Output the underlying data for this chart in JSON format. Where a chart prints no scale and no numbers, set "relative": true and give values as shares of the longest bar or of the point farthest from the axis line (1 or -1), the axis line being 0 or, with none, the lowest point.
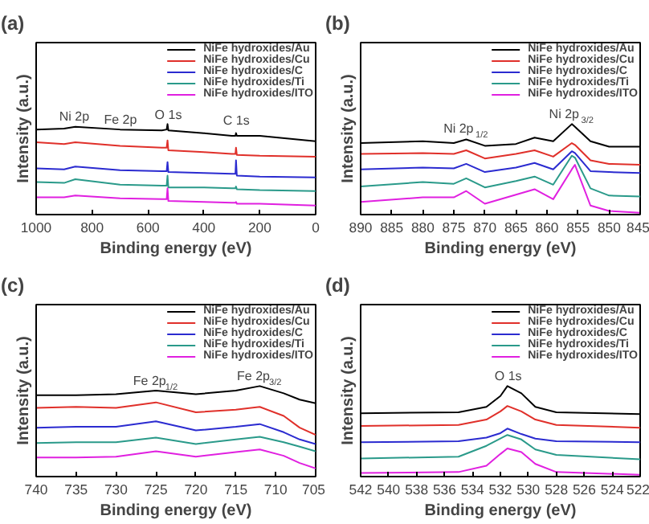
{
  "chart_data": [
    {
      "type": "line",
      "title": "(a)",
      "xlabel": "Binding energy (eV)",
      "ylabel": "Intensity (a.u.)",
      "relative": true,
      "xlim": [
        1000,
        0
      ],
      "xticks": [
        1000,
        800,
        600,
        400,
        200,
        0
      ],
      "legend": "top right",
      "grid": false,
      "x": [
        1000,
        900,
        860,
        700,
        550,
        533,
        530,
        527,
        400,
        300,
        287,
        285,
        282,
        200,
        0
      ],
      "series": [
        {
          "name": "NiFe hydroxides/Au",
          "color": "#000000",
          "values": [
            0.94,
            0.95,
            0.97,
            0.94,
            0.93,
            0.94,
            1.0,
            0.93,
            0.9,
            0.87,
            0.87,
            0.9,
            0.87,
            0.87,
            0.81
          ]
        },
        {
          "name": "NiFe hydroxides/Cu",
          "color": "#e0302a",
          "values": [
            0.8,
            0.78,
            0.8,
            0.76,
            0.74,
            0.74,
            0.82,
            0.71,
            0.69,
            0.67,
            0.67,
            0.74,
            0.66,
            0.65,
            0.64
          ]
        },
        {
          "name": "NiFe hydroxides/C",
          "color": "#2b2bd0",
          "values": [
            0.51,
            0.5,
            0.53,
            0.49,
            0.48,
            0.48,
            0.58,
            0.47,
            0.46,
            0.45,
            0.45,
            0.6,
            0.43,
            0.42,
            0.41
          ]
        },
        {
          "name": "NiFe hydroxides/Ti",
          "color": "#2a9a8a",
          "values": [
            0.36,
            0.35,
            0.39,
            0.33,
            0.32,
            0.32,
            0.43,
            0.3,
            0.3,
            0.29,
            0.29,
            0.31,
            0.28,
            0.27,
            0.26
          ]
        },
        {
          "name": "NiFe hydroxides/ITO",
          "color": "#e020e0",
          "values": [
            0.19,
            0.19,
            0.21,
            0.18,
            0.17,
            0.17,
            0.29,
            0.15,
            0.14,
            0.13,
            0.13,
            0.14,
            0.12,
            0.12,
            0.1
          ]
        }
      ],
      "annotations": [
        {
          "text": "Ni 2p",
          "x": 860,
          "y": 1.0
        },
        {
          "text": "Fe 2p",
          "x": 700,
          "y": 0.97
        },
        {
          "text": "O 1s",
          "x": 530,
          "y": 1.02
        },
        {
          "text": "C 1s",
          "x": 285,
          "y": 0.96
        }
      ]
    },
    {
      "type": "line",
      "title": "(b)",
      "xlabel": "Binding energy (eV)",
      "ylabel": "Intensity (a.u.)",
      "relative": true,
      "xlim": [
        890,
        845
      ],
      "xticks": [
        890,
        885,
        880,
        875,
        870,
        865,
        860,
        855,
        850,
        845
      ],
      "legend": "top right",
      "grid": false,
      "x": [
        890,
        880,
        875,
        873,
        870,
        865,
        862,
        859,
        856,
        855.5,
        853,
        850,
        845
      ],
      "series": [
        {
          "name": "NiFe hydroxides/Au",
          "color": "#000000",
          "values": [
            0.79,
            0.81,
            0.79,
            0.83,
            0.76,
            0.78,
            0.85,
            0.81,
            1.0,
            0.97,
            0.81,
            0.75,
            0.75
          ]
        },
        {
          "name": "NiFe hydroxides/Cu",
          "color": "#e0302a",
          "values": [
            0.67,
            0.68,
            0.67,
            0.71,
            0.62,
            0.67,
            0.71,
            0.64,
            0.79,
            0.77,
            0.6,
            0.56,
            0.55
          ]
        },
        {
          "name": "NiFe hydroxides/C",
          "color": "#2b2bd0",
          "values": [
            0.5,
            0.52,
            0.51,
            0.56,
            0.47,
            0.52,
            0.57,
            0.5,
            0.7,
            0.68,
            0.48,
            0.47,
            0.46
          ]
        },
        {
          "name": "NiFe hydroxides/Ti",
          "color": "#2a9a8a",
          "values": [
            0.31,
            0.36,
            0.34,
            0.4,
            0.3,
            0.37,
            0.42,
            0.33,
            0.65,
            0.63,
            0.29,
            0.21,
            0.2
          ]
        },
        {
          "name": "NiFe hydroxides/ITO",
          "color": "#e020e0",
          "values": [
            0.14,
            0.19,
            0.19,
            0.26,
            0.12,
            0.22,
            0.28,
            0.17,
            0.5,
            0.55,
            0.1,
            0.04,
            0.02
          ]
        }
      ],
      "annotations": [
        {
          "text": "Ni 2p$_{1/2}$",
          "x": 873,
          "y": 0.87
        },
        {
          "text": "Ni 2p$_{3/2}$",
          "x": 856,
          "y": 1.03
        }
      ]
    },
    {
      "type": "line",
      "title": "(c)",
      "xlabel": "Binding energy (eV)",
      "ylabel": "Intensity (a.u.)",
      "relative": true,
      "xlim": [
        740,
        705
      ],
      "xticks": [
        740,
        735,
        730,
        725,
        720,
        715,
        710,
        705
      ],
      "legend": "top right",
      "grid": false,
      "x": [
        740,
        735,
        730,
        725,
        720,
        715,
        712,
        709,
        707,
        705
      ],
      "series": [
        {
          "name": "NiFe hydroxides/Au",
          "color": "#000000",
          "values": [
            0.9,
            0.9,
            0.91,
            0.95,
            0.91,
            0.95,
            1.0,
            0.92,
            0.85,
            0.81
          ]
        },
        {
          "name": "NiFe hydroxides/Cu",
          "color": "#e0302a",
          "values": [
            0.76,
            0.77,
            0.76,
            0.82,
            0.71,
            0.74,
            0.77,
            0.67,
            0.54,
            0.46
          ]
        },
        {
          "name": "NiFe hydroxides/C",
          "color": "#2b2bd0",
          "values": [
            0.54,
            0.55,
            0.55,
            0.61,
            0.51,
            0.55,
            0.58,
            0.49,
            0.41,
            0.36
          ]
        },
        {
          "name": "NiFe hydroxides/Ti",
          "color": "#2a9a8a",
          "values": [
            0.37,
            0.38,
            0.38,
            0.43,
            0.36,
            0.41,
            0.44,
            0.38,
            0.33,
            0.28
          ]
        },
        {
          "name": "NiFe hydroxides/ITO",
          "color": "#e020e0",
          "values": [
            0.21,
            0.21,
            0.22,
            0.28,
            0.22,
            0.27,
            0.3,
            0.23,
            0.15,
            0.09
          ]
        }
      ],
      "annotations": [
        {
          "text": "Fe 2p$_{1/2}$",
          "x": 725,
          "y": 0.98
        },
        {
          "text": "Fe 2p$_{3/2}$",
          "x": 712,
          "y": 1.03
        }
      ]
    },
    {
      "type": "line",
      "title": "(d)",
      "xlabel": "Binding energy (eV)",
      "ylabel": "Intensity (a.u.)",
      "relative": true,
      "xlim": [
        542,
        522
      ],
      "xticks": [
        542,
        540,
        538,
        536,
        534,
        532,
        530,
        528,
        526,
        524,
        522
      ],
      "legend": "top right",
      "grid": false,
      "x": [
        542,
        535,
        533,
        532,
        531.5,
        530.5,
        529.5,
        528,
        522
      ],
      "series": [
        {
          "name": "NiFe hydroxides/Au",
          "color": "#000000",
          "values": [
            0.7,
            0.71,
            0.77,
            0.89,
            1.0,
            0.92,
            0.77,
            0.71,
            0.69
          ]
        },
        {
          "name": "NiFe hydroxides/Cu",
          "color": "#e0302a",
          "values": [
            0.56,
            0.57,
            0.63,
            0.72,
            0.78,
            0.72,
            0.63,
            0.57,
            0.54
          ]
        },
        {
          "name": "NiFe hydroxides/C",
          "color": "#2b2bd0",
          "values": [
            0.38,
            0.39,
            0.43,
            0.48,
            0.53,
            0.47,
            0.42,
            0.39,
            0.38
          ]
        },
        {
          "name": "NiFe hydroxides/Ti",
          "color": "#2a9a8a",
          "values": [
            0.2,
            0.22,
            0.34,
            0.42,
            0.46,
            0.41,
            0.3,
            0.24,
            0.19
          ]
        },
        {
          "name": "NiFe hydroxides/ITO",
          "color": "#e020e0",
          "values": [
            0.04,
            0.05,
            0.12,
            0.25,
            0.31,
            0.27,
            0.14,
            0.05,
            0.02
          ]
        }
      ],
      "annotations": [
        {
          "text": "O 1s",
          "x": 531.5,
          "y": 1.03
        }
      ]
    }
  ]
}
